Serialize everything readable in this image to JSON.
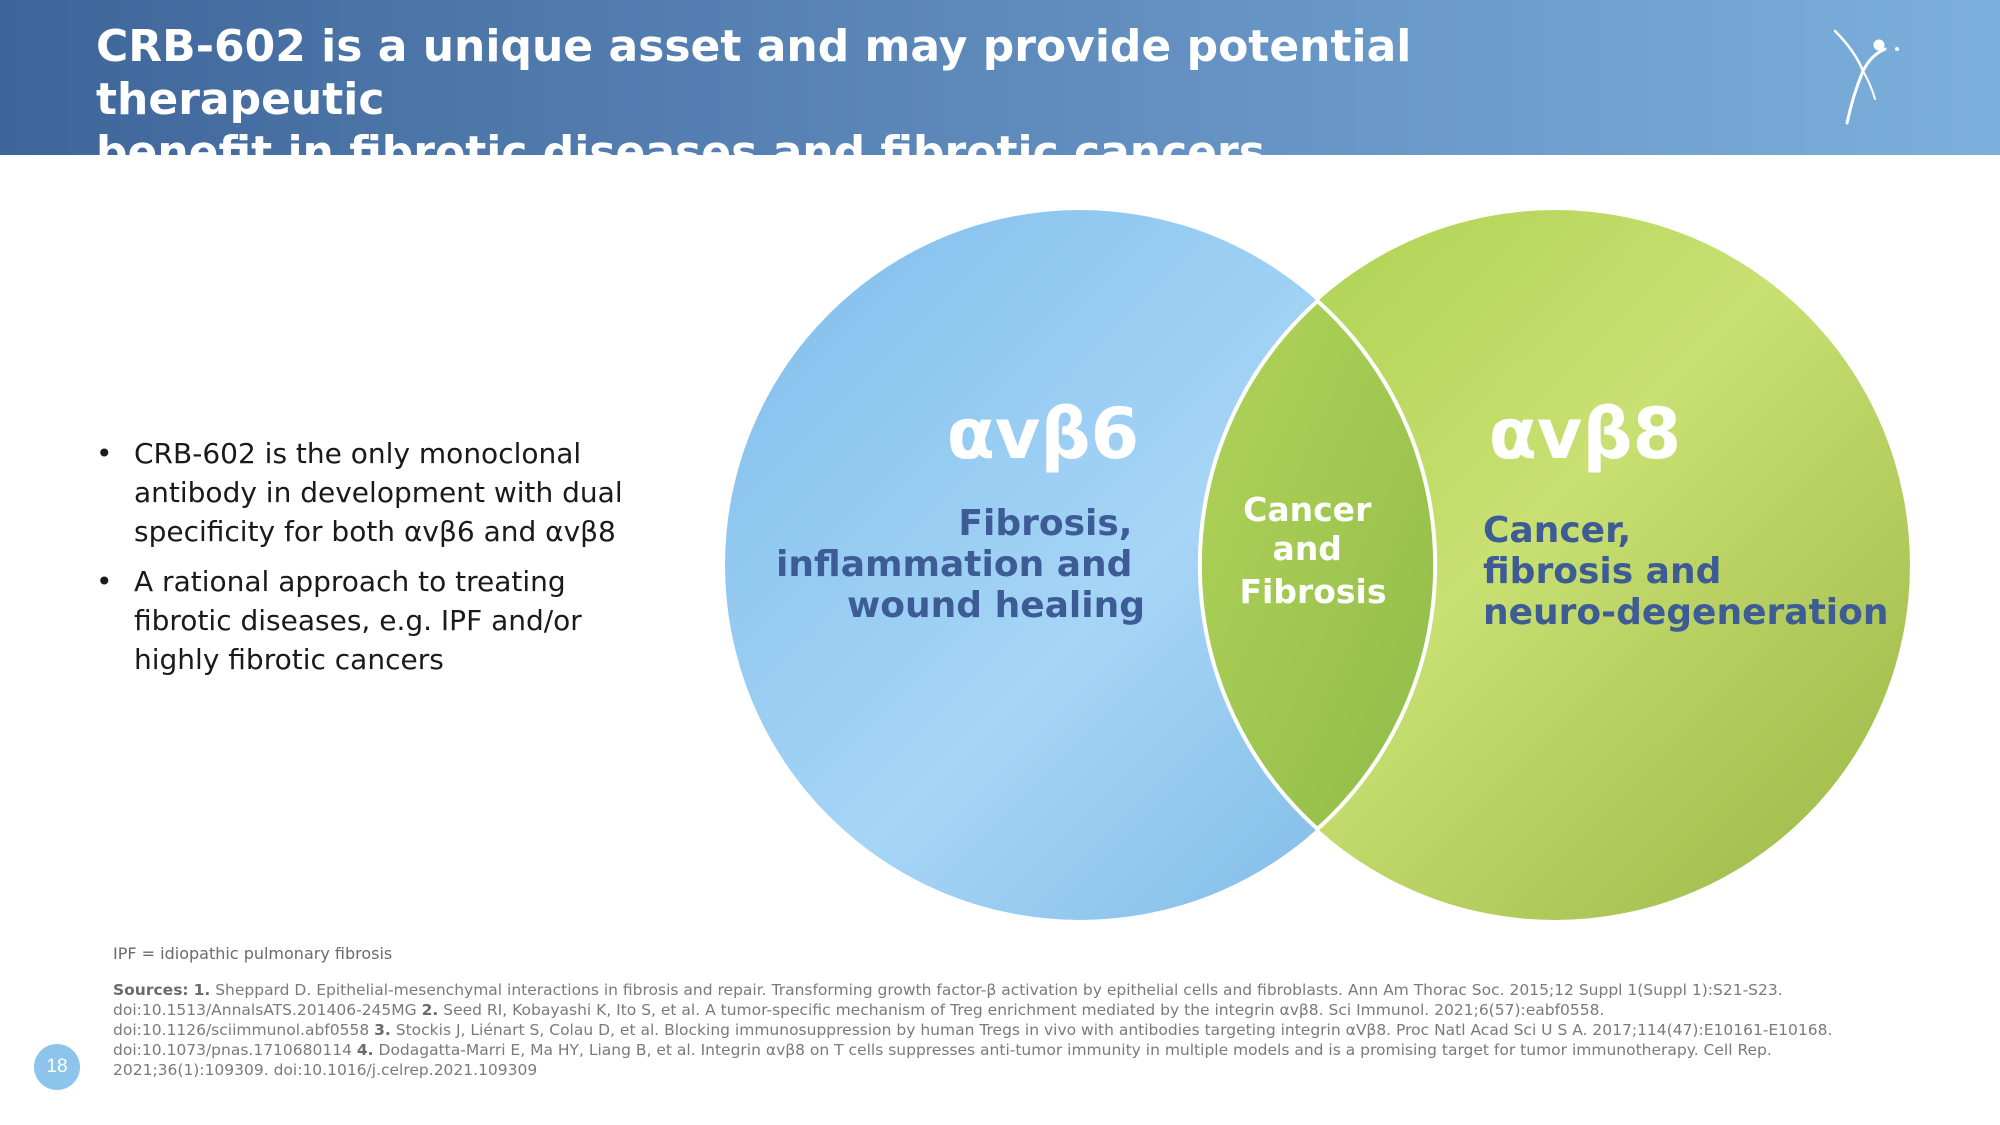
{
  "slide": {
    "title_line1": "CRB-602 is a unique asset and may provide potential therapeutic",
    "title_line2": "benefit in fibrotic diseases and fibrotic cancers",
    "page_number": "18"
  },
  "bullets": [
    "CRB-602 is the only monoclonal antibody in development with dual specificity for both αvβ6 and αvβ8",
    "A rational approach to treating fibrotic diseases, e.g. IPF and/or highly fibrotic cancers"
  ],
  "venn": {
    "left": {
      "heading": "αvβ6",
      "lines": [
        "Fibrosis,",
        "inflammation and",
        "wound healing"
      ],
      "color": "#8ec8f0"
    },
    "right": {
      "heading": "αvβ8",
      "lines": [
        "Cancer,",
        "fibrosis and",
        "neuro-degeneration"
      ],
      "color": "#b8d85c"
    },
    "overlap": {
      "lines": [
        "Cancer",
        "and",
        "Fibrosis"
      ],
      "color": "#9cc44a"
    },
    "label_color": "#3d5b94"
  },
  "footnotes": {
    "abbreviation": "IPF = idiopathic pulmonary fibrosis",
    "sources_label": "Sources:",
    "sources": [
      {
        "num": "1.",
        "text": "Sheppard D. Epithelial-mesenchymal interactions in fibrosis and repair. Transforming growth factor-β activation by epithelial cells and fibroblasts. Ann Am Thorac Soc. 2015;12 Suppl 1(Suppl 1):S21-S23. doi:10.1513/AnnalsATS.201406-245MG"
      },
      {
        "num": "2.",
        "text": "Seed RI, Kobayashi K, Ito S, et al. A tumor-specific mechanism of Treg enrichment mediated by the integrin αvβ8. Sci Immunol. 2021;6(57):eabf0558. doi:10.1126/sciimmunol.abf0558"
      },
      {
        "num": "3.",
        "text": "Stockis J, Liénart S, Colau D, et al. Blocking immunosuppression by human Tregs in vivo with antibodies targeting integrin αVβ8. Proc Natl Acad Sci U S A. 2017;114(47):E10161-E10168. doi:10.1073/pnas.1710680114"
      },
      {
        "num": "4.",
        "text": "Dodagatta-Marri E, Ma HY, Liang B, et al. Integrin αvβ8 on T cells suppresses anti-tumor immunity in multiple models and is a promising target for tumor immunotherapy. Cell Rep. 2021;36(1):109309. doi:10.1016/j.celrep.2021.109309"
      }
    ]
  },
  "icons": {
    "logo": "person-star-logo"
  }
}
